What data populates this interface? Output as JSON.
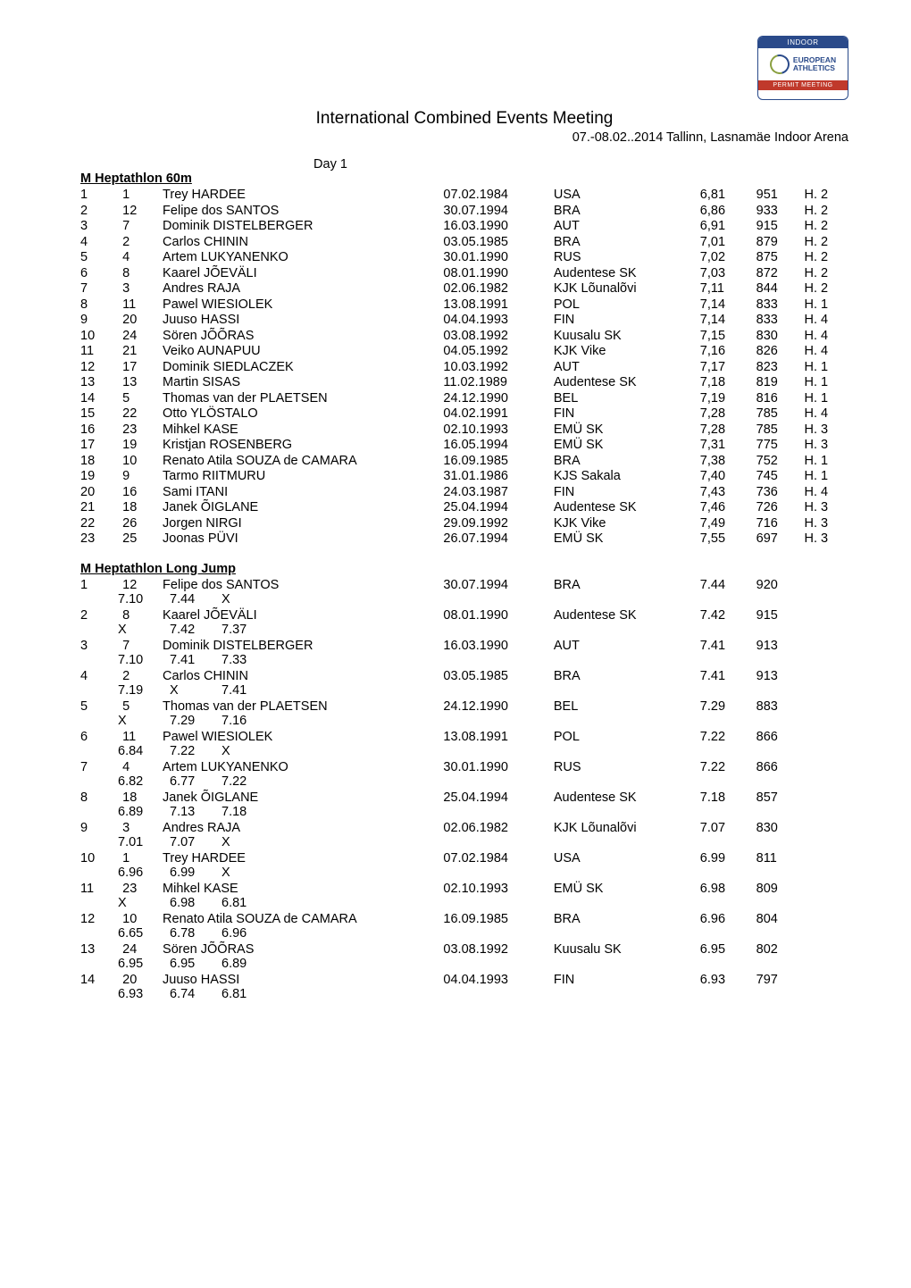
{
  "logo": {
    "top": "INDOOR",
    "mid1": "EUROPEAN",
    "mid2": "ATHLETICS",
    "bottom": "PERMIT MEETING"
  },
  "header": {
    "title": "International Combined Events Meeting",
    "subtitle": "07.-08.02..2014 Tallinn, Lasnamäe Indoor Arena",
    "day": "Day 1"
  },
  "section1": {
    "heading": "M Heptathlon 60m",
    "rows": [
      {
        "rank": "1",
        "bib": "1",
        "name": "Trey HARDEE",
        "dob": "07.02.1984",
        "club": "USA",
        "res": "6,81",
        "pts": "951",
        "heat": "H. 2"
      },
      {
        "rank": "2",
        "bib": "12",
        "name": "Felipe dos SANTOS",
        "dob": "30.07.1994",
        "club": "BRA",
        "res": "6,86",
        "pts": "933",
        "heat": "H. 2"
      },
      {
        "rank": "3",
        "bib": "7",
        "name": "Dominik DISTELBERGER",
        "dob": "16.03.1990",
        "club": "AUT",
        "res": "6,91",
        "pts": "915",
        "heat": "H. 2"
      },
      {
        "rank": "4",
        "bib": "2",
        "name": "Carlos CHININ",
        "dob": "03.05.1985",
        "club": "BRA",
        "res": "7,01",
        "pts": "879",
        "heat": "H. 2"
      },
      {
        "rank": "5",
        "bib": "4",
        "name": "Artem LUKYANENKO",
        "dob": "30.01.1990",
        "club": "RUS",
        "res": "7,02",
        "pts": "875",
        "heat": "H. 2"
      },
      {
        "rank": "6",
        "bib": "8",
        "name": "Kaarel JÕEVÄLI",
        "dob": "08.01.1990",
        "club": "Audentese SK",
        "res": "7,03",
        "pts": "872",
        "heat": "H. 2"
      },
      {
        "rank": "7",
        "bib": "3",
        "name": "Andres RAJA",
        "dob": "02.06.1982",
        "club": "KJK Lõunalõvi",
        "res": "7,11",
        "pts": "844",
        "heat": "H. 2"
      },
      {
        "rank": "8",
        "bib": "11",
        "name": "Pawel WIESIOLEK",
        "dob": "13.08.1991",
        "club": "POL",
        "res": "7,14",
        "pts": "833",
        "heat": "H. 1"
      },
      {
        "rank": "9",
        "bib": "20",
        "name": "Juuso HASSI",
        "dob": "04.04.1993",
        "club": "FIN",
        "res": "7,14",
        "pts": "833",
        "heat": "H. 4"
      },
      {
        "rank": "10",
        "bib": "24",
        "name": "Sören JÕÕRAS",
        "dob": "03.08.1992",
        "club": "Kuusalu SK",
        "res": "7,15",
        "pts": "830",
        "heat": "H. 4"
      },
      {
        "rank": "11",
        "bib": "21",
        "name": "Veiko AUNAPUU",
        "dob": "04.05.1992",
        "club": "KJK Vike",
        "res": "7,16",
        "pts": "826",
        "heat": "H. 4"
      },
      {
        "rank": "12",
        "bib": "17",
        "name": "Dominik SIEDLACZEK",
        "dob": "10.03.1992",
        "club": "AUT",
        "res": "7,17",
        "pts": "823",
        "heat": "H. 1"
      },
      {
        "rank": "13",
        "bib": "13",
        "name": "Martin SISAS",
        "dob": "11.02.1989",
        "club": "Audentese SK",
        "res": "7,18",
        "pts": "819",
        "heat": "H. 1"
      },
      {
        "rank": "14",
        "bib": "5",
        "name": "Thomas van der PLAETSEN",
        "dob": "24.12.1990",
        "club": "BEL",
        "res": "7,19",
        "pts": "816",
        "heat": "H. 1"
      },
      {
        "rank": "15",
        "bib": "22",
        "name": "Otto YLÖSTALO",
        "dob": "04.02.1991",
        "club": "FIN",
        "res": "7,28",
        "pts": "785",
        "heat": "H. 4"
      },
      {
        "rank": "16",
        "bib": "23",
        "name": "Mihkel KASE",
        "dob": "02.10.1993",
        "club": "EMÜ SK",
        "res": "7,28",
        "pts": "785",
        "heat": "H. 3"
      },
      {
        "rank": "17",
        "bib": "19",
        "name": "Kristjan ROSENBERG",
        "dob": "16.05.1994",
        "club": "EMÜ SK",
        "res": "7,31",
        "pts": "775",
        "heat": "H. 3"
      },
      {
        "rank": "18",
        "bib": "10",
        "name": "Renato Atila SOUZA de CAMARA",
        "dob": "16.09.1985",
        "club": "BRA",
        "res": "7,38",
        "pts": "752",
        "heat": "H. 1"
      },
      {
        "rank": "19",
        "bib": "9",
        "name": "Tarmo RIITMURU",
        "dob": "31.01.1986",
        "club": "KJS Sakala",
        "res": "7,40",
        "pts": "745",
        "heat": "H. 1"
      },
      {
        "rank": "20",
        "bib": "16",
        "name": "Sami ITANI",
        "dob": "24.03.1987",
        "club": "FIN",
        "res": "7,43",
        "pts": "736",
        "heat": "H. 4"
      },
      {
        "rank": "21",
        "bib": "18",
        "name": "Janek ÕIGLANE",
        "dob": "25.04.1994",
        "club": "Audentese SK",
        "res": "7,46",
        "pts": "726",
        "heat": "H. 3"
      },
      {
        "rank": "22",
        "bib": "26",
        "name": "Jorgen NIRGI",
        "dob": "29.09.1992",
        "club": "KJK Vike",
        "res": "7,49",
        "pts": "716",
        "heat": "H. 3"
      },
      {
        "rank": "23",
        "bib": "25",
        "name": "Joonas PÜVI",
        "dob": "26.07.1994",
        "club": "EMÜ SK",
        "res": "7,55",
        "pts": "697",
        "heat": "H. 3"
      }
    ]
  },
  "section2": {
    "heading": "M Heptathlon Long Jump",
    "rows": [
      {
        "rank": "1",
        "bib": "12",
        "name": "Felipe dos SANTOS",
        "dob": "30.07.1994",
        "club": "BRA",
        "res": "7.44",
        "pts": "920",
        "a1": "7.10",
        "a2": "7.44",
        "a3": "X"
      },
      {
        "rank": "2",
        "bib": "8",
        "name": "Kaarel JÕEVÄLI",
        "dob": "08.01.1990",
        "club": "Audentese SK",
        "res": "7.42",
        "pts": "915",
        "a1": "X",
        "a2": "7.42",
        "a3": "7.37"
      },
      {
        "rank": "3",
        "bib": "7",
        "name": "Dominik DISTELBERGER",
        "dob": "16.03.1990",
        "club": "AUT",
        "res": "7.41",
        "pts": "913",
        "a1": "7.10",
        "a2": "7.41",
        "a3": "7.33"
      },
      {
        "rank": "4",
        "bib": "2",
        "name": "Carlos CHININ",
        "dob": "03.05.1985",
        "club": "BRA",
        "res": "7.41",
        "pts": "913",
        "a1": "7.19",
        "a2": "X",
        "a3": "7.41"
      },
      {
        "rank": "5",
        "bib": "5",
        "name": "Thomas van der PLAETSEN",
        "dob": "24.12.1990",
        "club": "BEL",
        "res": "7.29",
        "pts": "883",
        "a1": "X",
        "a2": "7.29",
        "a3": "7.16"
      },
      {
        "rank": "6",
        "bib": "11",
        "name": "Pawel WIESIOLEK",
        "dob": "13.08.1991",
        "club": "POL",
        "res": "7.22",
        "pts": "866",
        "a1": "6.84",
        "a2": "7.22",
        "a3": "X"
      },
      {
        "rank": "7",
        "bib": "4",
        "name": "Artem LUKYANENKO",
        "dob": "30.01.1990",
        "club": "RUS",
        "res": "7.22",
        "pts": "866",
        "a1": "6.82",
        "a2": "6.77",
        "a3": "7.22"
      },
      {
        "rank": "8",
        "bib": "18",
        "name": "Janek ÕIGLANE",
        "dob": "25.04.1994",
        "club": "Audentese SK",
        "res": "7.18",
        "pts": "857",
        "a1": "6.89",
        "a2": "7.13",
        "a3": "7.18"
      },
      {
        "rank": "9",
        "bib": "3",
        "name": "Andres RAJA",
        "dob": "02.06.1982",
        "club": "KJK Lõunalõvi",
        "res": "7.07",
        "pts": "830",
        "a1": "7.01",
        "a2": "7.07",
        "a3": "X"
      },
      {
        "rank": "10",
        "bib": "1",
        "name": "Trey HARDEE",
        "dob": "07.02.1984",
        "club": "USA",
        "res": "6.99",
        "pts": "811",
        "a1": "6.96",
        "a2": "6.99",
        "a3": "X"
      },
      {
        "rank": "11",
        "bib": "23",
        "name": "Mihkel KASE",
        "dob": "02.10.1993",
        "club": "EMÜ SK",
        "res": "6.98",
        "pts": "809",
        "a1": "X",
        "a2": "6.98",
        "a3": "6.81"
      },
      {
        "rank": "12",
        "bib": "10",
        "name": "Renato Atila SOUZA de CAMARA",
        "dob": "16.09.1985",
        "club": "BRA",
        "res": "6.96",
        "pts": "804",
        "a1": "6.65",
        "a2": "6.78",
        "a3": "6.96"
      },
      {
        "rank": "13",
        "bib": "24",
        "name": "Sören JÕÕRAS",
        "dob": "03.08.1992",
        "club": "Kuusalu SK",
        "res": "6.95",
        "pts": "802",
        "a1": "6.95",
        "a2": "6.95",
        "a3": "6.89"
      },
      {
        "rank": "14",
        "bib": "20",
        "name": "Juuso HASSI",
        "dob": "04.04.1993",
        "club": "FIN",
        "res": "6.93",
        "pts": "797",
        "a1": "6.93",
        "a2": "6.74",
        "a3": "6.81"
      }
    ]
  }
}
